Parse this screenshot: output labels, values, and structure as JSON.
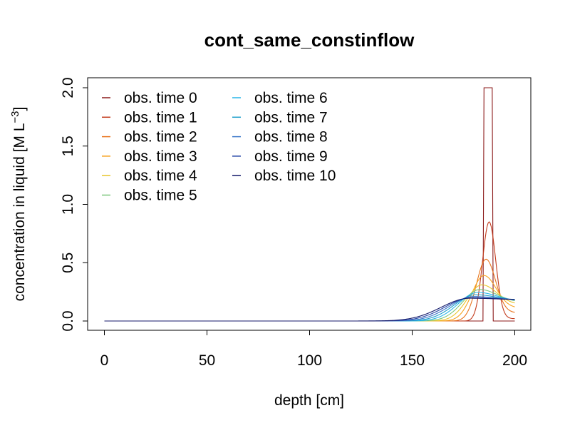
{
  "chart_data": {
    "type": "line",
    "title": "cont_same_constinflow",
    "xlabel": "depth [cm]",
    "ylabel_main": "concentration in liquid [M L",
    "ylabel_sup": "−3",
    "ylabel_close": "]",
    "xlim": [
      0,
      200
    ],
    "ylim": [
      0,
      2
    ],
    "x_ticks": [
      0,
      50,
      100,
      150,
      200
    ],
    "x_tick_labels": [
      "0",
      "50",
      "100",
      "150",
      "200"
    ],
    "y_ticks": [
      0,
      0.5,
      1,
      1.5,
      2
    ],
    "y_tick_labels": [
      "0.0",
      "0.5",
      "1.0",
      "1.5",
      "2.0"
    ],
    "grid": false,
    "legend_position": "top-left",
    "series": [
      {
        "name": "obs. time  0",
        "color": "#8B1A1A",
        "shape": "rect",
        "lo": 185,
        "hi": 189,
        "peak": 2.0
      },
      {
        "name": "obs. time  1",
        "color": "#C23A1B",
        "shape": "pulse",
        "mu": 187.5,
        "sigma": 3.2,
        "peak": 0.85,
        "tail": 0.02
      },
      {
        "name": "obs. time  2",
        "color": "#E8741C",
        "shape": "pulse",
        "mu": 186.0,
        "sigma": 4.6,
        "peak": 0.53,
        "tail": 0.07
      },
      {
        "name": "obs. time  3",
        "color": "#F6A21E",
        "shape": "pulse",
        "mu": 185.0,
        "sigma": 5.9,
        "peak": 0.39,
        "tail": 0.11
      },
      {
        "name": "obs. time  4",
        "color": "#E8C62C",
        "shape": "pulse",
        "mu": 184.0,
        "sigma": 7.2,
        "peak": 0.31,
        "tail": 0.14
      },
      {
        "name": "obs. time  5",
        "color": "#7CC67A",
        "shape": "pulse",
        "mu": 183.0,
        "sigma": 8.4,
        "peak": 0.27,
        "tail": 0.16
      },
      {
        "name": "obs. time  6",
        "color": "#29B6E8",
        "shape": "pulse",
        "mu": 182.0,
        "sigma": 9.5,
        "peak": 0.245,
        "tail": 0.165
      },
      {
        "name": "obs. time  7",
        "color": "#1E9FCB",
        "shape": "pulse",
        "mu": 181.0,
        "sigma": 10.6,
        "peak": 0.225,
        "tail": 0.17
      },
      {
        "name": "obs. time  8",
        "color": "#3D78C9",
        "shape": "pulse",
        "mu": 180.0,
        "sigma": 11.7,
        "peak": 0.21,
        "tail": 0.175
      },
      {
        "name": "obs. time  9",
        "color": "#2747A8",
        "shape": "pulse",
        "mu": 179.0,
        "sigma": 12.8,
        "peak": 0.2,
        "tail": 0.18
      },
      {
        "name": "obs. time  10",
        "color": "#141A6B",
        "shape": "pulse",
        "mu": 178.0,
        "sigma": 13.8,
        "peak": 0.195,
        "tail": 0.18
      }
    ]
  }
}
